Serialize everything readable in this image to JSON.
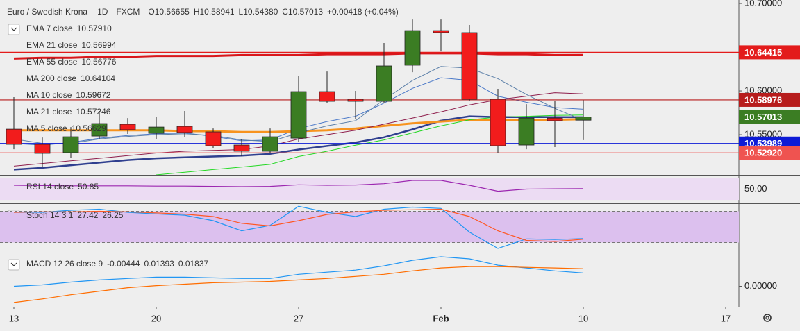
{
  "header": {
    "title": "Euro / Swedish Krona",
    "interval": "1D",
    "source": "FXCM",
    "ohlc": [
      {
        "label": "O",
        "text": "10.56655"
      },
      {
        "label": "H",
        "text": "10.58941"
      },
      {
        "label": "L",
        "text": "10.54380"
      },
      {
        "label": "C",
        "text": "10.57013"
      }
    ],
    "change": "+0.00418 (+0.04%)"
  },
  "chart_data": [
    {
      "type": "candlestick",
      "x_labels": [
        "13",
        "20",
        "27",
        "Feb",
        "10",
        "17"
      ],
      "open": [
        10.5563,
        10.5389,
        10.5294,
        10.5484,
        10.5619,
        10.5516,
        10.5595,
        10.5532,
        10.5381,
        10.531,
        10.546,
        10.5992,
        10.5905,
        10.5881,
        10.6294,
        10.669,
        10.6667,
        10.5905,
        10.5381,
        10.569,
        10.56655
      ],
      "high": [
        10.5929,
        10.5468,
        10.5587,
        10.577,
        10.569,
        10.5706,
        10.577,
        10.5571,
        10.5452,
        10.5571,
        10.6167,
        10.6222,
        10.6,
        10.6548,
        10.6817,
        10.6817,
        10.6754,
        10.6024,
        10.5849,
        10.5889,
        10.58941
      ],
      "low": [
        10.5333,
        10.5135,
        10.523,
        10.5452,
        10.5508,
        10.5452,
        10.5476,
        10.5349,
        10.5254,
        10.5294,
        10.5413,
        10.5865,
        10.5675,
        10.5865,
        10.6214,
        10.6452,
        10.5889,
        10.5294,
        10.5333,
        10.5357,
        10.5438
      ],
      "close": [
        10.5389,
        10.5286,
        10.5476,
        10.5627,
        10.5556,
        10.5587,
        10.5524,
        10.5373,
        10.531,
        10.5476,
        10.5992,
        10.5881,
        10.5881,
        10.6286,
        10.669,
        10.6667,
        10.5905,
        10.5373,
        10.569,
        10.5659,
        10.57013
      ],
      "up_color": "#3b7d23",
      "down_color": "#f21c1c",
      "ylim": [
        10.504,
        10.704
      ],
      "yticks": [
        {
          "value": 10.7,
          "label": "10.70000"
        },
        {
          "value": 10.6,
          "label": "10.60000"
        },
        {
          "value": 10.55,
          "label": "10.55000"
        }
      ],
      "price_labels": [
        {
          "value": 10.64415,
          "label": "10.64415",
          "color": "#e31b1b",
          "line": true
        },
        {
          "value": 10.58976,
          "label": "10.58976",
          "color": "#b71c1c",
          "line": true
        },
        {
          "value": 10.57013,
          "label": "10.57013",
          "color": "#3b7d23",
          "line": false
        },
        {
          "value": 10.53989,
          "label": "10.53989",
          "color": "#0d1bd6",
          "line": true
        },
        {
          "value": 10.5292,
          "label": "10.52920",
          "color": "#ef5350",
          "line": true
        }
      ],
      "overlays": [
        {
          "name": "EMA 7 close",
          "legend_value": "10.57910",
          "color": "#4a78c8",
          "width": 1,
          "values": [
            10.54,
            10.538,
            10.541,
            10.546,
            10.549,
            10.551,
            10.552,
            10.548,
            10.543,
            10.544,
            10.557,
            10.565,
            10.571,
            10.586,
            10.603,
            10.615,
            10.612,
            10.594,
            10.587,
            10.581,
            10.5791
          ]
        },
        {
          "name": "EMA 21 close",
          "legend_value": "10.56994",
          "color": "#2f3f8f",
          "width": 2.5,
          "values": [
            10.51,
            10.512,
            10.515,
            10.518,
            10.521,
            10.523,
            10.524,
            10.525,
            10.526,
            10.528,
            10.533,
            10.537,
            10.541,
            10.547,
            10.556,
            10.566,
            10.571,
            10.57,
            10.57,
            10.57,
            10.56994
          ]
        },
        {
          "name": "EMA 55 close",
          "legend_value": "10.56776",
          "color": "#f7931e",
          "width": 3,
          "values": [
            10.555,
            10.555,
            10.555,
            10.555,
            10.555,
            10.555,
            10.554,
            10.554,
            10.553,
            10.553,
            10.554,
            10.555,
            10.557,
            10.56,
            10.563,
            10.565,
            10.567,
            10.567,
            10.567,
            10.567,
            10.56776
          ]
        },
        {
          "name": "MA 200 close",
          "legend_value": "10.64104",
          "color": "#d9161b",
          "width": 3,
          "values": [
            10.637,
            10.638,
            10.638,
            10.639,
            10.639,
            10.64,
            10.64,
            10.64,
            10.641,
            10.641,
            10.641,
            10.642,
            10.642,
            10.642,
            10.643,
            10.643,
            10.643,
            10.642,
            10.642,
            10.641,
            10.64104
          ]
        },
        {
          "name": "MA 10 close",
          "legend_value": "10.59672",
          "color": "#8e1e4c",
          "width": 1,
          "values": [
            10.514,
            10.517,
            10.52,
            10.523,
            10.526,
            10.529,
            10.531,
            10.532,
            10.533,
            10.537,
            10.545,
            10.55,
            10.555,
            10.562,
            10.569,
            10.576,
            10.584,
            10.59,
            10.594,
            10.598,
            10.59672
          ]
        },
        {
          "name": "MA 21 close",
          "legend_value": "10.57246",
          "color": "#22d822",
          "width": 1,
          "values": [
            null,
            null,
            null,
            null,
            null,
            10.504,
            10.507,
            10.51,
            10.513,
            10.516,
            10.525,
            10.531,
            10.538,
            10.544,
            10.552,
            10.56,
            10.567,
            10.57,
            10.571,
            10.572,
            10.57246
          ]
        },
        {
          "name": "MA 5 close",
          "legend_value": "10.56629",
          "color": "#5b7fa8",
          "width": 1,
          "values": [
            10.545,
            10.54,
            10.54,
            10.545,
            10.548,
            10.55,
            10.551,
            10.549,
            10.544,
            10.542,
            10.552,
            10.56,
            10.566,
            10.59,
            10.612,
            10.628,
            10.626,
            10.614,
            10.596,
            10.58,
            10.56629
          ]
        }
      ]
    },
    {
      "type": "line",
      "title": "RSI 14 close",
      "ylim": [
        25,
        75
      ],
      "yticks": [
        {
          "value": 50,
          "label": "50.00"
        }
      ],
      "band": [
        30,
        70
      ],
      "band_color": "#ecdcf3",
      "series": [
        {
          "color": "#9c27b0",
          "value_label": "50.85",
          "values": [
            57,
            56.5,
            56,
            56,
            56,
            55.5,
            55.5,
            55,
            54.5,
            55,
            58,
            57,
            57.5,
            60,
            66,
            66,
            57,
            46,
            50,
            50.5,
            50.85
          ]
        }
      ]
    },
    {
      "type": "line",
      "title": "Stoch 14 3 1",
      "ylim": [
        2,
        94
      ],
      "band": [
        20,
        80
      ],
      "band_color": "#dcc0ee",
      "levels": [
        20,
        80
      ],
      "series": [
        {
          "color": "#2196f3",
          "value_label": "27.42",
          "values": [
            78,
            78,
            82,
            84,
            78,
            75,
            72.6,
            62,
            42.6,
            53,
            89.6,
            78,
            70,
            84,
            88,
            85.6,
            40,
            8.7,
            27,
            25.7,
            27.42
          ]
        },
        {
          "color": "#ff5722",
          "value_label": "26.25",
          "values": [
            78,
            79,
            79,
            80,
            79,
            77,
            74.6,
            70,
            57,
            52,
            62,
            74,
            79,
            82,
            83,
            84,
            70,
            42.6,
            24,
            22,
            26.25
          ]
        }
      ]
    },
    {
      "type": "line",
      "title": "MACD 12 26 close 9",
      "histogram_label": "-0.00444",
      "ylim": [
        -0.0206,
        0.0344
      ],
      "yticks": [
        {
          "value": 0,
          "label": "0.00000"
        }
      ],
      "series": [
        {
          "color": "#2196f3",
          "value_label": "0.01393",
          "values": [
            0.0,
            0.0015,
            0.0044,
            0.0066,
            0.0081,
            0.0095,
            0.0095,
            0.0088,
            0.0081,
            0.0081,
            0.0125,
            0.0147,
            0.0169,
            0.0213,
            0.0271,
            0.0308,
            0.0286,
            0.022,
            0.0191,
            0.0161,
            0.01393
          ]
        },
        {
          "color": "#ff6d00",
          "value_label": "0.01837",
          "values": [
            -0.0169,
            -0.0132,
            -0.0088,
            -0.0051,
            -0.0015,
            0.0007,
            0.0022,
            0.0037,
            0.0044,
            0.0051,
            0.0066,
            0.0081,
            0.0103,
            0.0125,
            0.0161,
            0.0191,
            0.0205,
            0.0205,
            0.0198,
            0.0191,
            0.01837
          ]
        }
      ]
    }
  ]
}
